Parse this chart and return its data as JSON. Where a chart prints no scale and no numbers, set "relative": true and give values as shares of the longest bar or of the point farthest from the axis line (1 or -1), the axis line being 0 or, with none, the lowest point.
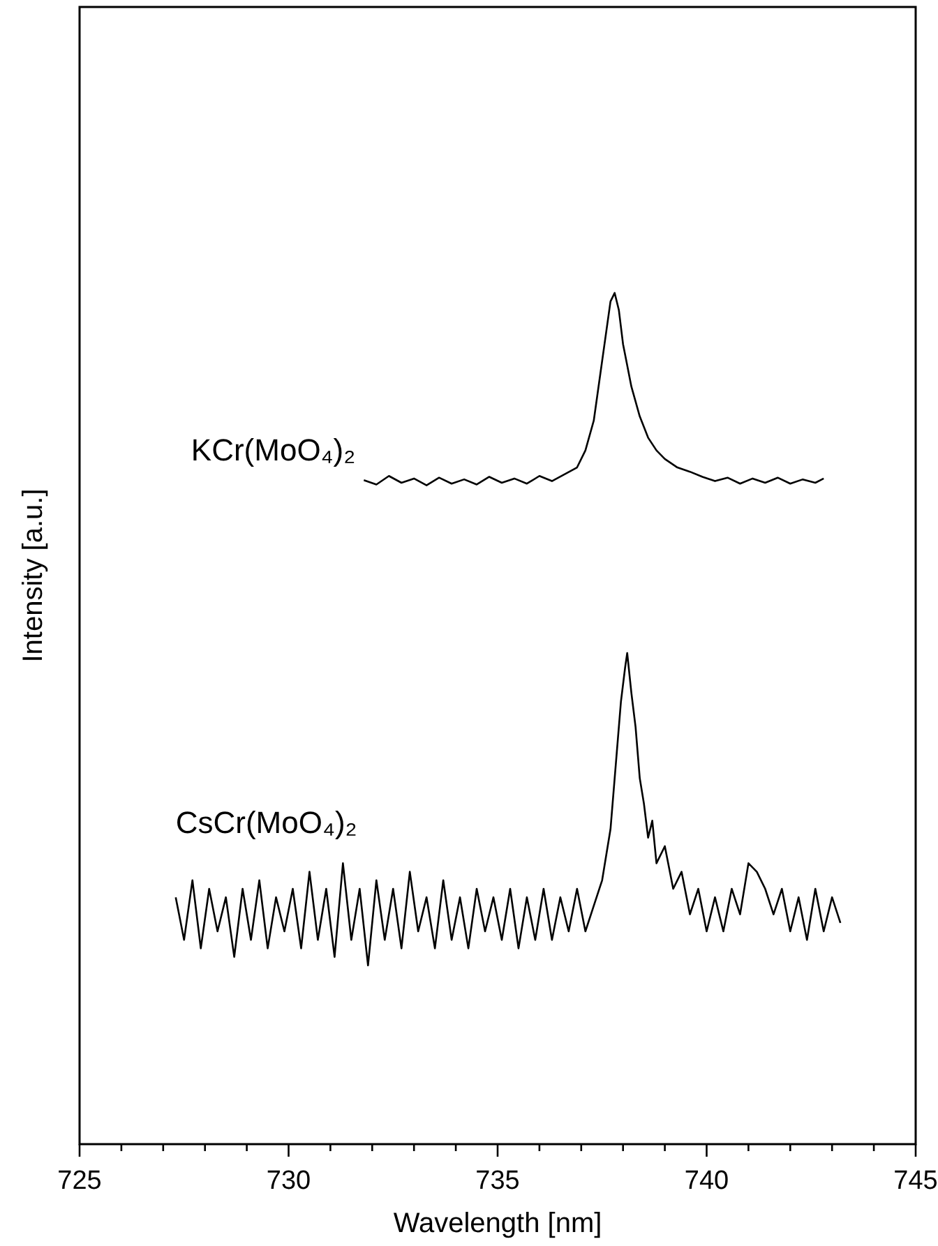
{
  "chart_data": {
    "type": "line",
    "relative": true,
    "xlabel": "Wavelength [nm]",
    "ylabel": "Intensity [a.u.]",
    "xlim": [
      725,
      745
    ],
    "xticks": [
      725,
      {
        "value": 726,
        "label": null
      },
      {
        "value": 727,
        "label": null
      },
      {
        "value": 728,
        "label": null
      },
      {
        "value": 729,
        "label": null
      },
      730,
      {
        "value": 731,
        "label": null
      },
      {
        "value": 732,
        "label": null
      },
      {
        "value": 733,
        "label": null
      },
      {
        "value": 734,
        "label": null
      },
      735,
      {
        "value": 736,
        "label": null
      },
      {
        "value": 737,
        "label": null
      },
      {
        "value": 738,
        "label": null
      },
      {
        "value": 739,
        "label": null
      },
      740,
      {
        "value": 741,
        "label": null
      },
      {
        "value": 742,
        "label": null
      },
      {
        "value": 743,
        "label": null
      },
      {
        "value": 744,
        "label": null
      },
      745
    ],
    "grid": false,
    "marker": "none",
    "line_style": "solid",
    "series": [
      {
        "name": "KCr(MoO₄)₂",
        "color": "#000000",
        "x": [
          731.8,
          732.1,
          732.4,
          732.7,
          733.0,
          733.3,
          733.6,
          733.9,
          734.2,
          734.5,
          734.8,
          735.1,
          735.4,
          735.7,
          736.0,
          736.3,
          736.6,
          736.9,
          737.1,
          737.3,
          737.5,
          737.7,
          737.8,
          737.9,
          738.0,
          738.2,
          738.4,
          738.6,
          738.8,
          739.0,
          739.3,
          739.6,
          739.9,
          740.2,
          740.5,
          740.8,
          741.1,
          741.4,
          741.7,
          742.0,
          742.3,
          742.6,
          742.8
        ],
        "values": [
          0.78,
          0.775,
          0.785,
          0.777,
          0.782,
          0.774,
          0.783,
          0.776,
          0.781,
          0.775,
          0.784,
          0.777,
          0.782,
          0.776,
          0.785,
          0.779,
          0.787,
          0.795,
          0.815,
          0.85,
          0.92,
          0.99,
          1.0,
          0.98,
          0.94,
          0.89,
          0.855,
          0.83,
          0.815,
          0.805,
          0.795,
          0.79,
          0.784,
          0.779,
          0.783,
          0.776,
          0.782,
          0.777,
          0.783,
          0.776,
          0.781,
          0.777,
          0.782
        ]
      },
      {
        "name": "CsCr(MoO₄)₂",
        "color": "#000000",
        "x": [
          727.3,
          727.5,
          727.7,
          727.9,
          728.1,
          728.3,
          728.5,
          728.7,
          728.9,
          729.1,
          729.3,
          729.5,
          729.7,
          729.9,
          730.1,
          730.3,
          730.5,
          730.7,
          730.9,
          731.1,
          731.3,
          731.5,
          731.7,
          731.9,
          732.1,
          732.3,
          732.5,
          732.7,
          732.9,
          733.1,
          733.3,
          733.5,
          733.7,
          733.9,
          734.1,
          734.3,
          734.5,
          734.7,
          734.9,
          735.1,
          735.3,
          735.5,
          735.7,
          735.9,
          736.1,
          736.3,
          736.5,
          736.7,
          736.9,
          737.1,
          737.3,
          737.5,
          737.7,
          737.85,
          737.95,
          738.05,
          738.1,
          738.2,
          738.3,
          738.4,
          738.5,
          738.6,
          738.7,
          738.8,
          739.0,
          739.2,
          739.4,
          739.6,
          739.8,
          740.0,
          740.2,
          740.4,
          740.6,
          740.8,
          741.0,
          741.2,
          741.4,
          741.6,
          741.8,
          742.0,
          742.2,
          742.4,
          742.6,
          742.8,
          743.0,
          743.2
        ],
        "values": [
          0.29,
          0.24,
          0.31,
          0.23,
          0.3,
          0.25,
          0.29,
          0.22,
          0.3,
          0.24,
          0.31,
          0.23,
          0.29,
          0.25,
          0.3,
          0.23,
          0.32,
          0.24,
          0.3,
          0.22,
          0.33,
          0.24,
          0.3,
          0.21,
          0.31,
          0.24,
          0.3,
          0.23,
          0.32,
          0.25,
          0.29,
          0.23,
          0.31,
          0.24,
          0.29,
          0.23,
          0.3,
          0.25,
          0.29,
          0.24,
          0.3,
          0.23,
          0.29,
          0.24,
          0.3,
          0.24,
          0.29,
          0.25,
          0.3,
          0.25,
          0.28,
          0.31,
          0.37,
          0.46,
          0.52,
          0.56,
          0.577,
          0.53,
          0.49,
          0.43,
          0.4,
          0.36,
          0.38,
          0.33,
          0.35,
          0.3,
          0.32,
          0.27,
          0.3,
          0.25,
          0.29,
          0.25,
          0.3,
          0.27,
          0.33,
          0.32,
          0.3,
          0.27,
          0.3,
          0.25,
          0.29,
          0.24,
          0.3,
          0.25,
          0.29,
          0.26
        ]
      }
    ]
  }
}
